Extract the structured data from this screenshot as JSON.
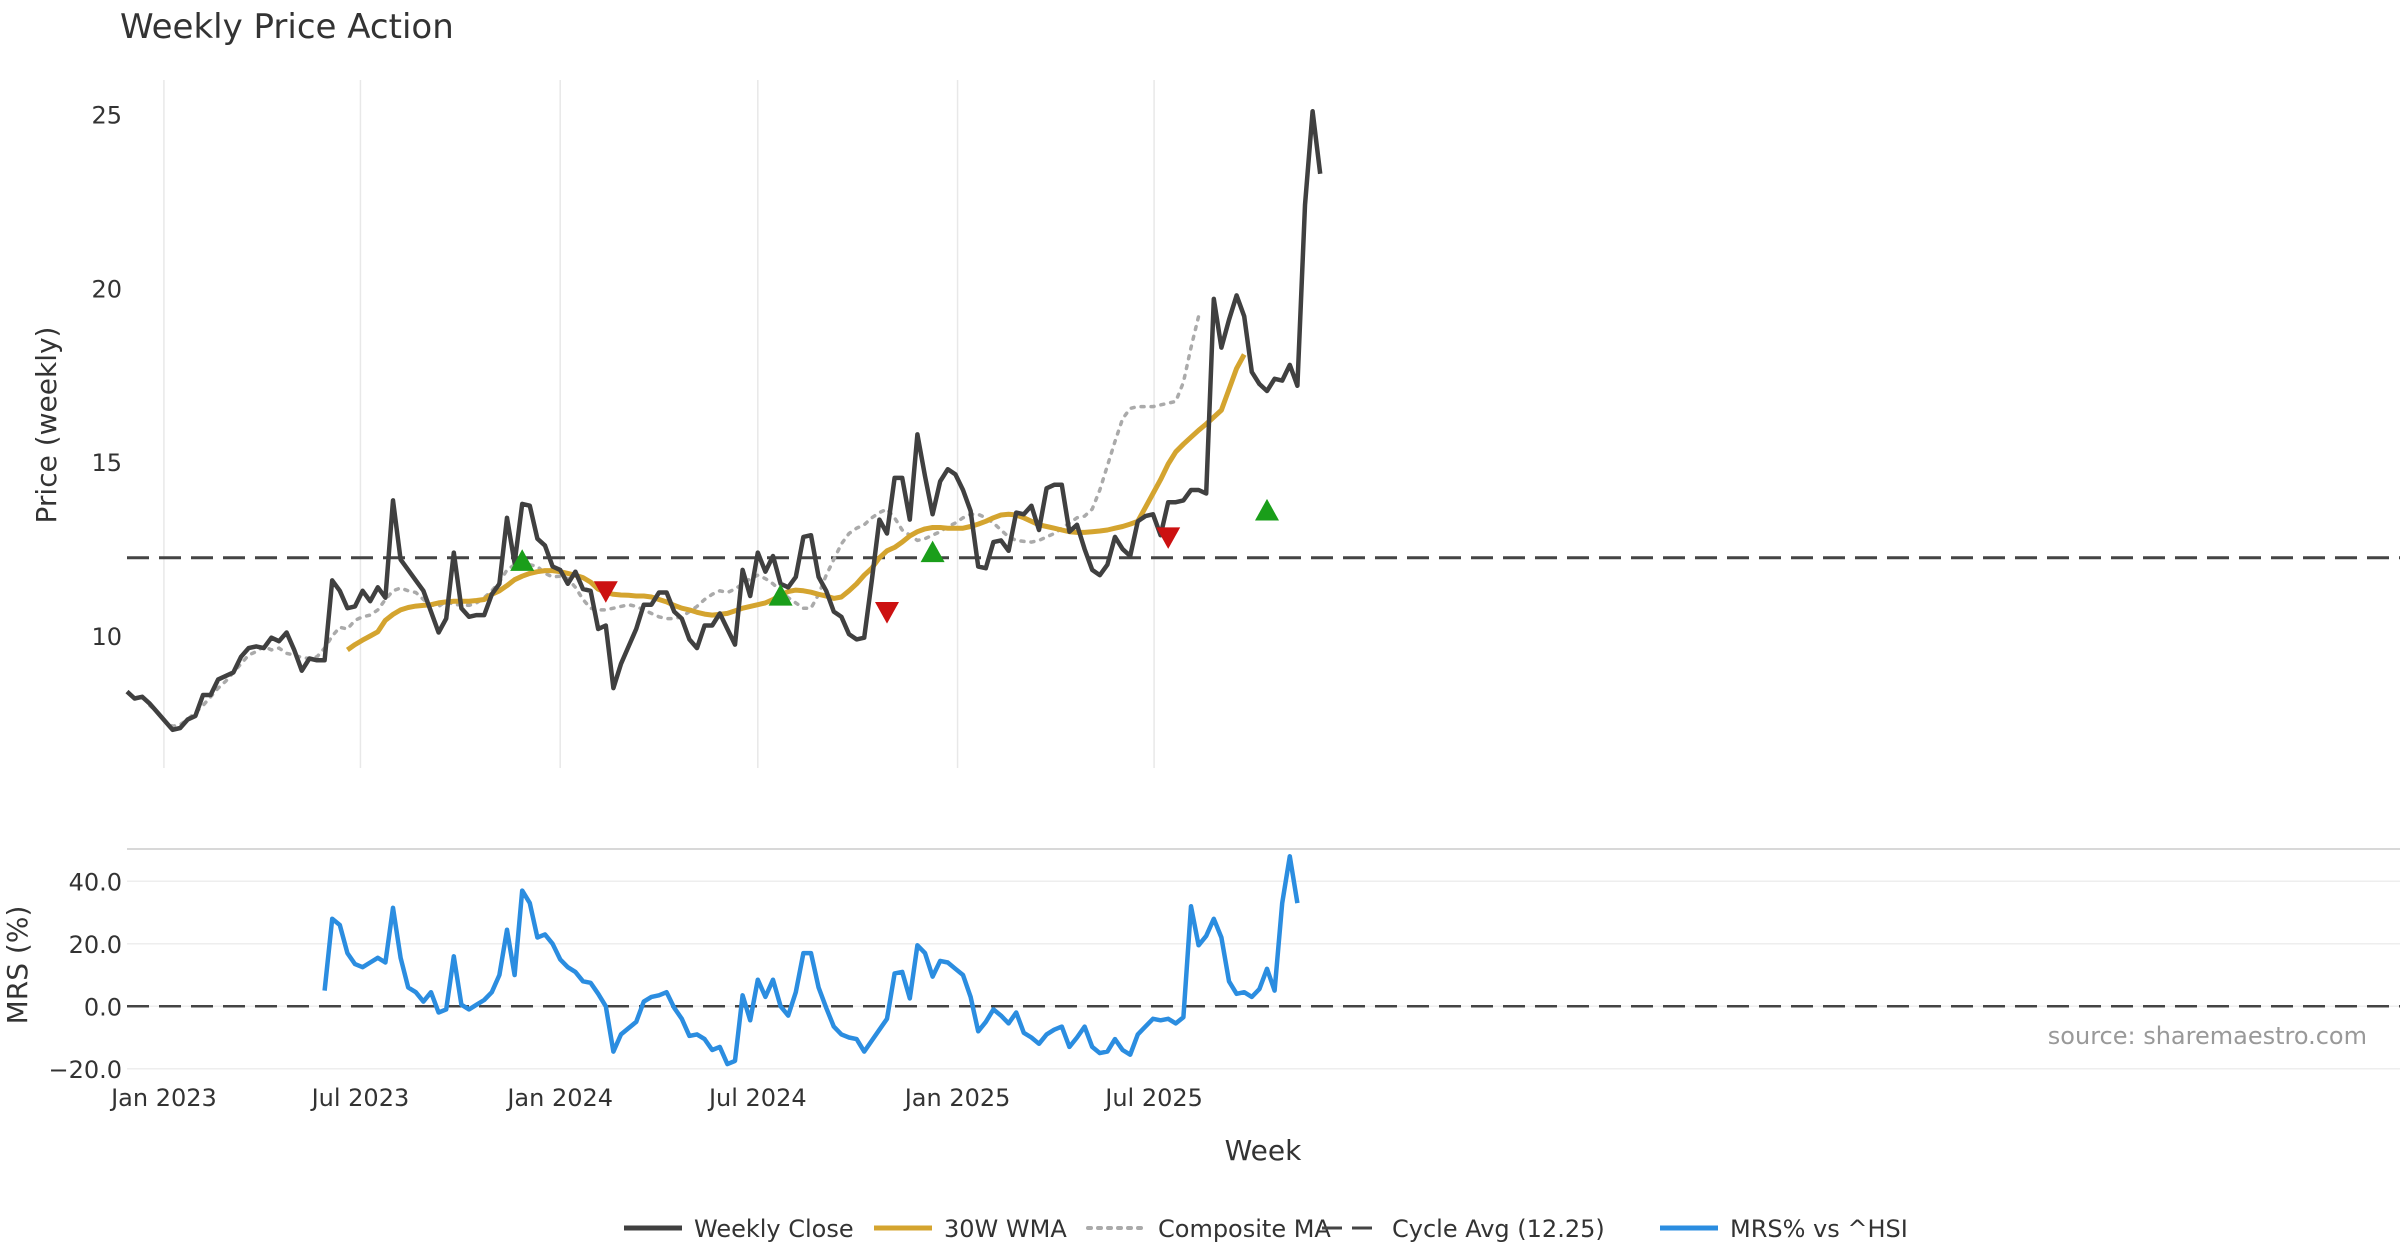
{
  "chart_data": [
    {
      "type": "line",
      "title": "Weekly Price Action",
      "ylabel": "Price (weekly)",
      "ylim": [
        6.2,
        26.0
      ],
      "yticks": [
        10,
        15,
        20,
        25
      ],
      "x_start": "2022-11-28",
      "x_step_days": 7,
      "reference_line": {
        "label": "Cycle Avg (12.25)",
        "value": 12.25
      },
      "series": [
        {
          "name": "Weekly Close",
          "color": "#404040",
          "values": [
            8.4,
            8.2,
            8.25,
            8.05,
            7.8,
            7.55,
            7.3,
            7.35,
            7.6,
            7.7,
            8.3,
            8.3,
            8.75,
            8.85,
            8.95,
            9.4,
            9.65,
            9.7,
            9.65,
            9.95,
            9.85,
            10.1,
            9.6,
            9.0,
            9.35,
            9.3,
            9.3,
            11.6,
            11.3,
            10.8,
            10.85,
            11.3,
            11.0,
            11.4,
            11.1,
            13.9,
            12.2,
            11.9,
            11.6,
            11.3,
            10.7,
            10.1,
            10.5,
            12.4,
            10.8,
            10.55,
            10.6,
            10.6,
            11.2,
            11.5,
            13.4,
            12.1,
            13.8,
            13.75,
            12.8,
            12.6,
            12.0,
            11.9,
            11.5,
            11.85,
            11.35,
            11.3,
            10.2,
            10.3,
            8.5,
            9.2,
            9.7,
            10.2,
            10.9,
            10.9,
            11.25,
            11.25,
            10.7,
            10.5,
            9.9,
            9.65,
            10.3,
            10.3,
            10.65,
            10.2,
            9.75,
            11.9,
            11.15,
            12.4,
            11.85,
            12.3,
            11.5,
            11.4,
            11.7,
            12.85,
            12.9,
            11.7,
            11.3,
            10.7,
            10.55,
            10.05,
            9.9,
            9.95,
            11.6,
            13.35,
            12.95,
            14.55,
            14.55,
            13.35,
            15.8,
            14.6,
            13.5,
            14.45,
            14.8,
            14.65,
            14.2,
            13.6,
            12.0,
            11.95,
            12.7,
            12.75,
            12.45,
            13.55,
            13.5,
            13.75,
            13.05,
            14.25,
            14.35,
            14.35,
            13.0,
            13.2,
            12.5,
            11.9,
            11.75,
            12.05,
            12.85,
            12.5,
            12.3,
            13.3,
            13.45,
            13.5,
            12.9,
            13.85,
            13.85,
            13.9,
            14.2,
            14.2,
            14.1,
            19.7,
            18.3,
            19.1,
            19.8,
            19.2,
            17.6,
            17.25,
            17.05,
            17.4,
            17.35,
            17.8,
            17.2,
            22.4,
            25.1,
            23.3
          ]
        },
        {
          "name": "30W WMA",
          "color": "#d4a42f",
          "start_index": 29,
          "values": [
            9.6,
            9.75,
            9.88,
            10.0,
            10.12,
            10.45,
            10.62,
            10.75,
            10.82,
            10.86,
            10.88,
            10.9,
            10.95,
            10.98,
            11.0,
            11.0,
            11.0,
            11.02,
            11.05,
            11.2,
            11.3,
            11.45,
            11.62,
            11.72,
            11.8,
            11.85,
            11.88,
            11.88,
            11.85,
            11.8,
            11.75,
            11.68,
            11.55,
            11.35,
            11.25,
            11.2,
            11.18,
            11.17,
            11.15,
            11.15,
            11.12,
            11.05,
            10.98,
            10.88,
            10.8,
            10.75,
            10.68,
            10.63,
            10.6,
            10.62,
            10.65,
            10.72,
            10.8,
            10.85,
            10.9,
            10.95,
            11.05,
            11.18,
            11.28,
            11.32,
            11.3,
            11.26,
            11.2,
            11.15,
            11.08,
            11.12,
            11.3,
            11.5,
            11.75,
            11.95,
            12.25,
            12.45,
            12.55,
            12.7,
            12.88,
            13.0,
            13.08,
            13.12,
            13.12,
            13.1,
            13.1,
            13.1,
            13.15,
            13.22,
            13.3,
            13.4,
            13.48,
            13.5,
            13.48,
            13.4,
            13.3,
            13.2,
            13.15,
            13.1,
            13.05,
            13.0,
            12.98,
            12.98,
            13.0,
            13.02,
            13.05,
            13.1,
            13.15,
            13.22,
            13.3,
            13.7,
            14.1,
            14.5,
            14.95,
            15.3,
            15.52,
            15.72,
            15.92,
            16.1,
            16.3,
            16.5,
            17.1,
            17.7,
            18.1
          ]
        },
        {
          "name": "Composite MA",
          "color": "#aaaaaa",
          "start_index": 3,
          "values": [
            8.0,
            7.8,
            7.55,
            7.4,
            7.45,
            7.6,
            7.8,
            8.0,
            8.25,
            8.5,
            8.7,
            8.95,
            9.2,
            9.45,
            9.55,
            9.7,
            9.6,
            9.65,
            9.5,
            9.45,
            9.38,
            9.35,
            9.4,
            9.65,
            10.0,
            10.25,
            10.2,
            10.45,
            10.55,
            10.6,
            10.75,
            11.05,
            11.3,
            11.38,
            11.3,
            11.25,
            11.05,
            10.9,
            10.85,
            11.0,
            10.9,
            10.9,
            10.88,
            10.95,
            11.1,
            11.3,
            11.55,
            11.9,
            12.05,
            12.1,
            12.05,
            12.0,
            11.8,
            11.7,
            11.72,
            11.65,
            11.4,
            11.05,
            10.8,
            10.75,
            10.75,
            10.8,
            10.85,
            10.9,
            10.85,
            10.75,
            10.65,
            10.55,
            10.5,
            10.5,
            10.55,
            10.7,
            10.85,
            11.05,
            11.2,
            11.3,
            11.25,
            11.35,
            11.5,
            11.65,
            11.75,
            11.65,
            11.5,
            11.3,
            11.1,
            10.95,
            10.8,
            10.8,
            11.2,
            11.75,
            12.2,
            12.65,
            12.95,
            13.1,
            13.2,
            13.4,
            13.55,
            13.65,
            13.4,
            13.05,
            12.9,
            12.75,
            12.8,
            12.9,
            13.0,
            13.15,
            13.25,
            13.4,
            13.5,
            13.5,
            13.4,
            13.25,
            13.05,
            12.85,
            12.75,
            12.72,
            12.7,
            12.75,
            12.85,
            12.95,
            13.1,
            13.25,
            13.4,
            13.45,
            13.65,
            14.2,
            14.9,
            15.6,
            16.25,
            16.55,
            16.6,
            16.6,
            16.6,
            16.65,
            16.7,
            16.75,
            17.3,
            18.3,
            19.2
          ]
        }
      ],
      "markers": [
        {
          "index": 52,
          "value": 12.15,
          "kind": "buy",
          "color": "#1a9e1a"
        },
        {
          "index": 63,
          "value": 11.3,
          "kind": "sell",
          "color": "#cc1111"
        },
        {
          "index": 86,
          "value": 11.15,
          "kind": "buy",
          "color": "#1a9e1a"
        },
        {
          "index": 100,
          "value": 10.7,
          "kind": "sell",
          "color": "#cc1111"
        },
        {
          "index": 106,
          "value": 12.4,
          "kind": "buy",
          "color": "#1a9e1a"
        },
        {
          "index": 137,
          "value": 12.85,
          "kind": "sell",
          "color": "#cc1111"
        },
        {
          "index": 150,
          "value": 13.6,
          "kind": "buy",
          "color": "#1a9e1a"
        }
      ]
    },
    {
      "type": "line",
      "title": "",
      "ylabel": "MRS (%)",
      "xlabel": "Week",
      "ylim": [
        -22,
        50
      ],
      "yticks": [
        -20.0,
        0.0,
        20.0,
        40.0
      ],
      "ytick_labels": [
        "−20.0",
        "0.0",
        "20.0",
        "40.0"
      ],
      "reference_line": {
        "value": 0
      },
      "x_ticks": [
        {
          "label": "Jan 2023",
          "date": "2023-01-01"
        },
        {
          "label": "Jul 2023",
          "date": "2023-07-01"
        },
        {
          "label": "Jan 2024",
          "date": "2024-01-01"
        },
        {
          "label": "Jul 2024",
          "date": "2024-07-01"
        },
        {
          "label": "Jan 2025",
          "date": "2025-01-01"
        },
        {
          "label": "Jul 2025",
          "date": "2025-07-01"
        }
      ],
      "series": [
        {
          "name": "MRS% vs ^HSI",
          "color": "#2b8de0",
          "start_index": 26,
          "values": [
            5,
            28,
            26,
            17,
            13.5,
            12.5,
            14,
            15.5,
            14,
            31.5,
            15.5,
            6,
            4.5,
            1.5,
            4.5,
            -2,
            -1,
            16,
            0.5,
            -1,
            0.5,
            2,
            4.5,
            10,
            24.5,
            10,
            37,
            33,
            22,
            23,
            20,
            15,
            12.5,
            11,
            8,
            7.5,
            4,
            0,
            -14.5,
            -9,
            -7,
            -5,
            1.5,
            3,
            3.5,
            4.5,
            -0.5,
            -4,
            -9.5,
            -9,
            -10.5,
            -14,
            -13,
            -18.5,
            -17.5,
            3.5,
            -4.5,
            8.5,
            3,
            8.5,
            0,
            -3,
            4.5,
            17,
            17,
            6,
            -0.5,
            -6.5,
            -9,
            -10,
            -10.5,
            -14.5,
            -11,
            -7.5,
            -4,
            10.5,
            11,
            2.5,
            19.5,
            17,
            9.5,
            14.5,
            14,
            12,
            10,
            3,
            -8,
            -5,
            -1,
            -3,
            -5.5,
            -2,
            -8.5,
            -10,
            -12,
            -9,
            -7.5,
            -6.5,
            -13,
            -10,
            -6.5,
            -13,
            -15,
            -14.5,
            -10.5,
            -14,
            -15.5,
            -9,
            -6.5,
            -4,
            -4.5,
            -4,
            -5.5,
            -3.5,
            32,
            19.5,
            22.5,
            28,
            22,
            8,
            4,
            4.5,
            3,
            5.5,
            12,
            5,
            33,
            48,
            33
          ]
        }
      ]
    }
  ],
  "legend": {
    "items": [
      {
        "label": "Weekly Close",
        "color": "#404040",
        "style": "solid"
      },
      {
        "label": "30W WMA",
        "color": "#d4a42f",
        "style": "solid"
      },
      {
        "label": "Composite MA",
        "color": "#aaaaaa",
        "style": "dotted"
      },
      {
        "label": "Cycle Avg (12.25)",
        "color": "#444444",
        "style": "dashed"
      },
      {
        "label": "MRS% vs ^HSI",
        "color": "#2b8de0",
        "style": "solid"
      }
    ]
  },
  "watermark": "source: sharemaestro.com"
}
